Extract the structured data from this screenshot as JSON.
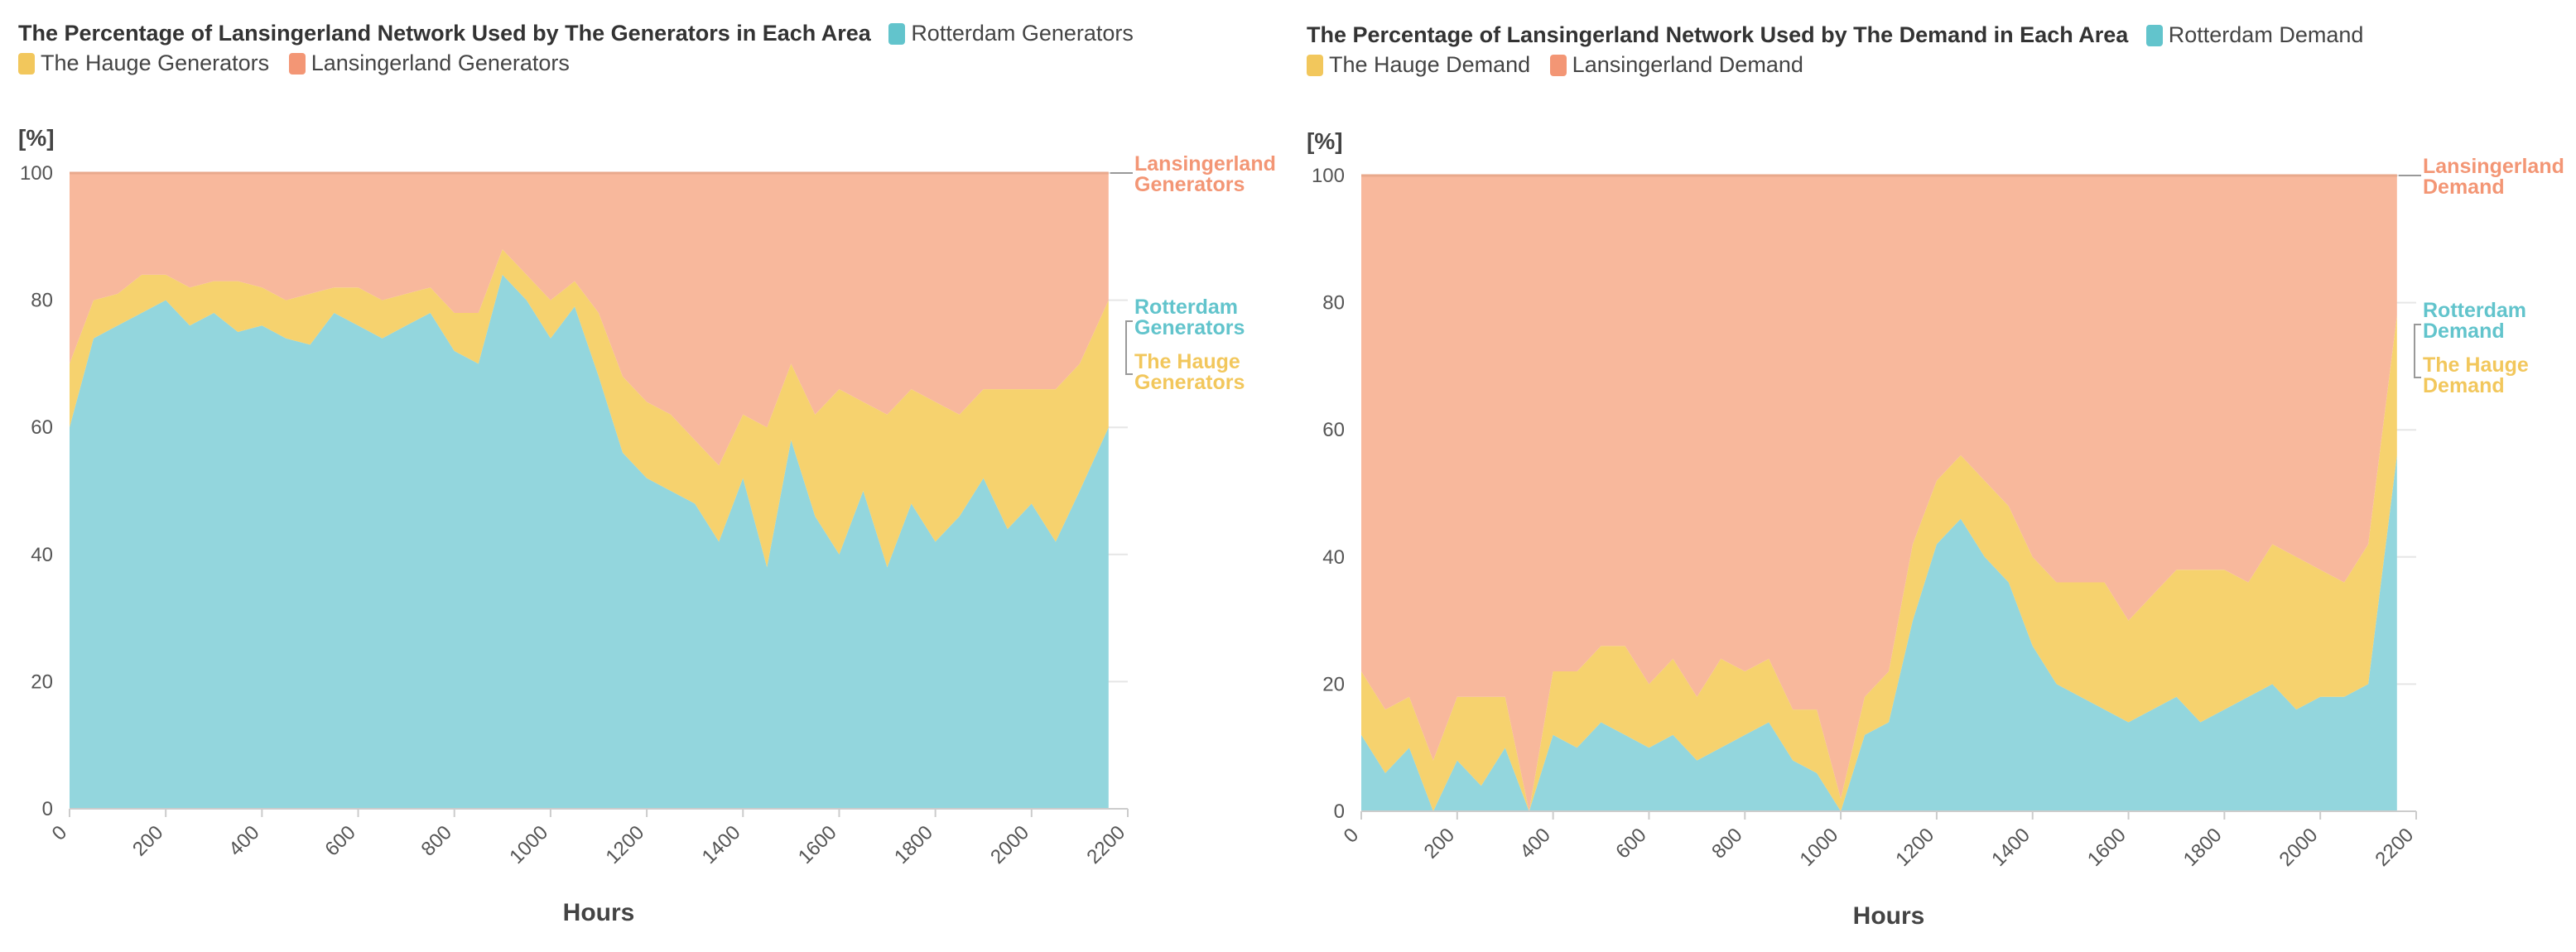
{
  "chart_data": [
    {
      "type": "area",
      "stacked": true,
      "title": "The Percentage of Lansingerland Network Used by The Generators in Each Area",
      "xlabel": "Hours",
      "ylabel": "[%]",
      "xlim": [
        0,
        2200
      ],
      "ylim": [
        0,
        100
      ],
      "x_ticks": [
        "0",
        "200",
        "400",
        "600",
        "800",
        "1000",
        "1200",
        "1400",
        "1600",
        "1800",
        "2000",
        "2200"
      ],
      "y_ticks": [
        "0",
        "20",
        "40",
        "60",
        "80",
        "100"
      ],
      "grid": "horizontal",
      "legend": "top",
      "x": [
        0,
        50,
        100,
        150,
        200,
        250,
        300,
        350,
        400,
        450,
        500,
        550,
        600,
        650,
        700,
        750,
        800,
        850,
        900,
        950,
        1000,
        1050,
        1100,
        1150,
        1200,
        1250,
        1300,
        1350,
        1400,
        1450,
        1500,
        1550,
        1600,
        1650,
        1700,
        1750,
        1800,
        1850,
        1900,
        1950,
        2000,
        2050,
        2100,
        2160
      ],
      "series": [
        {
          "name": "Rotterdam Generators",
          "color": "#93d6dd",
          "legend_color": "#62c4cc",
          "values": [
            60,
            74,
            76,
            78,
            80,
            76,
            78,
            75,
            76,
            74,
            73,
            78,
            76,
            74,
            76,
            78,
            72,
            70,
            84,
            80,
            74,
            79,
            68,
            56,
            52,
            50,
            48,
            42,
            52,
            38,
            58,
            46,
            40,
            50,
            38,
            48,
            42,
            46,
            52,
            44,
            48,
            42,
            50,
            60
          ]
        },
        {
          "name": "The Hauge Generators",
          "color": "#f6d26e",
          "legend_color": "#f2c75c",
          "values": [
            10,
            6,
            5,
            6,
            4,
            6,
            5,
            8,
            6,
            6,
            8,
            4,
            6,
            6,
            5,
            4,
            6,
            8,
            4,
            4,
            6,
            4,
            10,
            12,
            12,
            12,
            10,
            12,
            10,
            22,
            12,
            16,
            26,
            14,
            24,
            18,
            22,
            16,
            14,
            22,
            18,
            24,
            20,
            20
          ]
        },
        {
          "name": "Lansingerland Generators",
          "color": "#f8b89c",
          "legend_color": "#f39675",
          "values": [
            30,
            20,
            19,
            16,
            16,
            18,
            17,
            17,
            18,
            20,
            19,
            18,
            18,
            20,
            19,
            18,
            22,
            22,
            12,
            16,
            20,
            17,
            22,
            32,
            36,
            38,
            42,
            46,
            38,
            40,
            30,
            38,
            34,
            36,
            38,
            34,
            36,
            38,
            34,
            34,
            34,
            34,
            30,
            20
          ]
        }
      ],
      "end_labels": [
        {
          "lines": [
            "Lansingerland",
            "Generators"
          ],
          "color": "#f39675"
        },
        {
          "lines": [
            "Rotterdam",
            "Generators"
          ],
          "color": "#62c4cc"
        },
        {
          "lines": [
            "The Hauge",
            "Generators"
          ],
          "color": "#f2c75c"
        }
      ]
    },
    {
      "type": "area",
      "stacked": true,
      "title": "The Percentage of Lansingerland Network Used by The Demand in Each Area",
      "xlabel": "Hours",
      "ylabel": "[%]",
      "xlim": [
        0,
        2200
      ],
      "ylim": [
        0,
        100
      ],
      "x_ticks": [
        "0",
        "200",
        "400",
        "600",
        "800",
        "1000",
        "1200",
        "1400",
        "1600",
        "1800",
        "2000",
        "2200"
      ],
      "y_ticks": [
        "0",
        "20",
        "40",
        "60",
        "80",
        "100"
      ],
      "grid": "horizontal",
      "legend": "top",
      "x": [
        0,
        50,
        100,
        150,
        200,
        250,
        300,
        350,
        400,
        450,
        500,
        550,
        600,
        650,
        700,
        750,
        800,
        850,
        900,
        950,
        1000,
        1050,
        1100,
        1150,
        1200,
        1250,
        1300,
        1350,
        1400,
        1450,
        1500,
        1550,
        1600,
        1650,
        1700,
        1750,
        1800,
        1850,
        1900,
        1950,
        2000,
        2050,
        2100,
        2160
      ],
      "series": [
        {
          "name": "Rotterdam Demand",
          "color": "#93d6dd",
          "legend_color": "#62c4cc",
          "values": [
            12,
            6,
            10,
            0,
            8,
            4,
            10,
            0,
            12,
            10,
            14,
            12,
            10,
            12,
            8,
            10,
            12,
            14,
            8,
            6,
            0,
            12,
            14,
            30,
            42,
            46,
            40,
            36,
            26,
            20,
            18,
            16,
            14,
            16,
            18,
            14,
            16,
            18,
            20,
            16,
            18,
            18,
            20,
            56
          ]
        },
        {
          "name": "The Hauge Demand",
          "color": "#f6d26e",
          "legend_color": "#f2c75c",
          "values": [
            10,
            10,
            8,
            8,
            10,
            14,
            8,
            0,
            10,
            12,
            12,
            14,
            10,
            12,
            10,
            14,
            10,
            10,
            8,
            10,
            2,
            6,
            8,
            12,
            10,
            10,
            12,
            12,
            14,
            16,
            18,
            20,
            16,
            18,
            20,
            24,
            22,
            18,
            22,
            24,
            20,
            18,
            22,
            22
          ]
        },
        {
          "name": "Lansingerland Demand",
          "color": "#f8b89c",
          "legend_color": "#f39675",
          "values": [
            78,
            84,
            82,
            92,
            82,
            82,
            82,
            100,
            78,
            78,
            74,
            74,
            80,
            76,
            82,
            76,
            78,
            76,
            84,
            84,
            98,
            82,
            78,
            58,
            48,
            44,
            48,
            52,
            60,
            64,
            64,
            64,
            70,
            66,
            62,
            62,
            62,
            64,
            58,
            60,
            62,
            64,
            58,
            22
          ]
        }
      ],
      "end_labels": [
        {
          "lines": [
            "Lansingerland",
            "Demand"
          ],
          "color": "#f39675"
        },
        {
          "lines": [
            "Rotterdam",
            "Demand"
          ],
          "color": "#62c4cc"
        },
        {
          "lines": [
            "The Hauge",
            "Demand"
          ],
          "color": "#f2c75c"
        }
      ]
    }
  ]
}
